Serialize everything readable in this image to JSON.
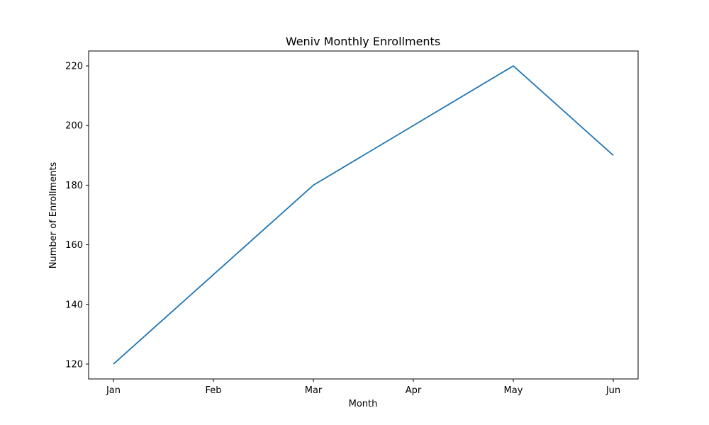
{
  "chart_data": {
    "type": "line",
    "title": "Weniv Monthly Enrollments",
    "xlabel": "Month",
    "ylabel": "Number of Enrollments",
    "categories": [
      "Jan",
      "Feb",
      "Mar",
      "Apr",
      "May",
      "Jun"
    ],
    "series": [
      {
        "values": [
          120,
          150,
          180,
          200,
          220,
          190
        ],
        "color": "#1f77b4"
      }
    ],
    "ylim": [
      115,
      225
    ],
    "yticks": [
      120,
      140,
      160,
      180,
      200,
      220
    ],
    "grid": false,
    "legend": "none"
  }
}
